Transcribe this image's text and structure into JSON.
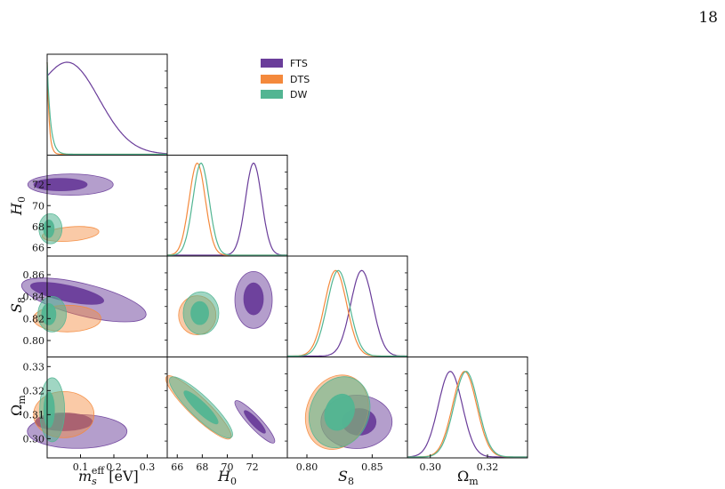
{
  "page_number": "18",
  "colors": {
    "FTS": "#6a3d9a",
    "DTS": "#f4893c",
    "DW": "#52b592"
  },
  "chart_data": {
    "type": "corner",
    "parameters": [
      {
        "name": "m_s_eff",
        "label": "m_s^eff [eV]",
        "range": [
          0.0,
          0.36
        ],
        "ticks": [
          "0.1",
          "0.2",
          "0.3"
        ]
      },
      {
        "name": "H0",
        "label": "H_0",
        "range": [
          65.2,
          74.8
        ],
        "ticks": [
          "66",
          "68",
          "70",
          "72"
        ]
      },
      {
        "name": "S8",
        "label": "S_8",
        "range": [
          0.785,
          0.877
        ],
        "ticks": [
          "0.80",
          "0.82",
          "0.84",
          "0.86",
          "0.80",
          "0.85"
        ]
      },
      {
        "name": "Omega_m",
        "label": "Ω_m",
        "range": [
          0.292,
          0.334
        ],
        "ticks": [
          "0.30",
          "0.31",
          "0.32",
          "0.33",
          "0.30",
          "0.32"
        ]
      }
    ],
    "series": [
      {
        "name": "FTS",
        "means": {
          "m_s_eff": 0.07,
          "H0": 72.1,
          "S8": 0.842,
          "Omega_m": 0.307
        }
      },
      {
        "name": "DTS",
        "means": {
          "m_s_eff": 0.01,
          "H0": 67.6,
          "S8": 0.822,
          "Omega_m": 0.312
        }
      },
      {
        "name": "DW",
        "means": {
          "m_s_eff": 0.01,
          "H0": 67.9,
          "S8": 0.824,
          "Omega_m": 0.313
        }
      }
    ],
    "legend_position": "top-right",
    "grid": false
  }
}
